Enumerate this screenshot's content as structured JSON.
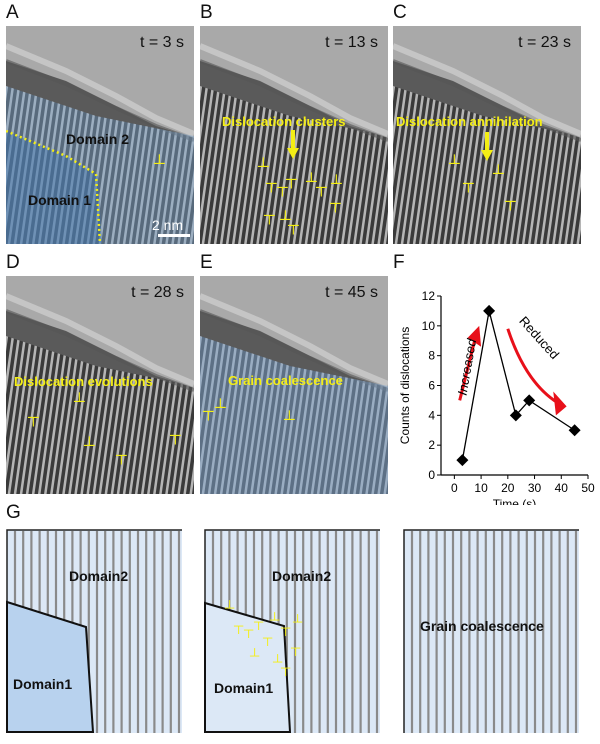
{
  "panels": {
    "A": {
      "label": "A",
      "time": "t = 3 s",
      "domain2": "Domain 2",
      "domain1": "Domain 1",
      "scale_bar": "2 nm"
    },
    "B": {
      "label": "B",
      "time": "t = 13 s",
      "annotation": "Dislocation clusters"
    },
    "C": {
      "label": "C",
      "time": "t = 23 s",
      "annotation": "Dislocation annihilation"
    },
    "D": {
      "label": "D",
      "time": "t = 28 s",
      "annotation": "Dislocation evolutions"
    },
    "E": {
      "label": "E",
      "time": "t = 45 s",
      "annotation": "Grain coalescence"
    },
    "F": {
      "label": "F"
    },
    "G": {
      "label": "G",
      "left_domain2": "Domain2",
      "left_domain1": "Domain1",
      "mid_domain2": "Domain2",
      "mid_domain1": "Domain1",
      "right_text": "Grain coalescence"
    }
  },
  "symbols": {
    "up": "┴",
    "down": "┬"
  },
  "colors": {
    "annotation": "#f4ee14",
    "arrow_red": "#e8101a",
    "domain_blue": "#7fa6cf",
    "schematic_fill": "#dce8f6",
    "schematic_domain1": "#b8d2ee"
  },
  "chart_data": {
    "type": "line",
    "title": "",
    "xlabel": "Time (s)",
    "ylabel": "Counts of dislocations",
    "x": [
      3,
      13,
      23,
      28,
      45
    ],
    "values": [
      1,
      11,
      4,
      5,
      3
    ],
    "xlim": [
      -5,
      50
    ],
    "ylim": [
      0,
      12
    ],
    "xticks": [
      0,
      10,
      20,
      30,
      40,
      50
    ],
    "yticks": [
      0,
      2,
      4,
      6,
      8,
      10,
      12
    ],
    "marker": "diamond",
    "grid": false,
    "annotations": [
      "Increased",
      "Reduced"
    ]
  }
}
